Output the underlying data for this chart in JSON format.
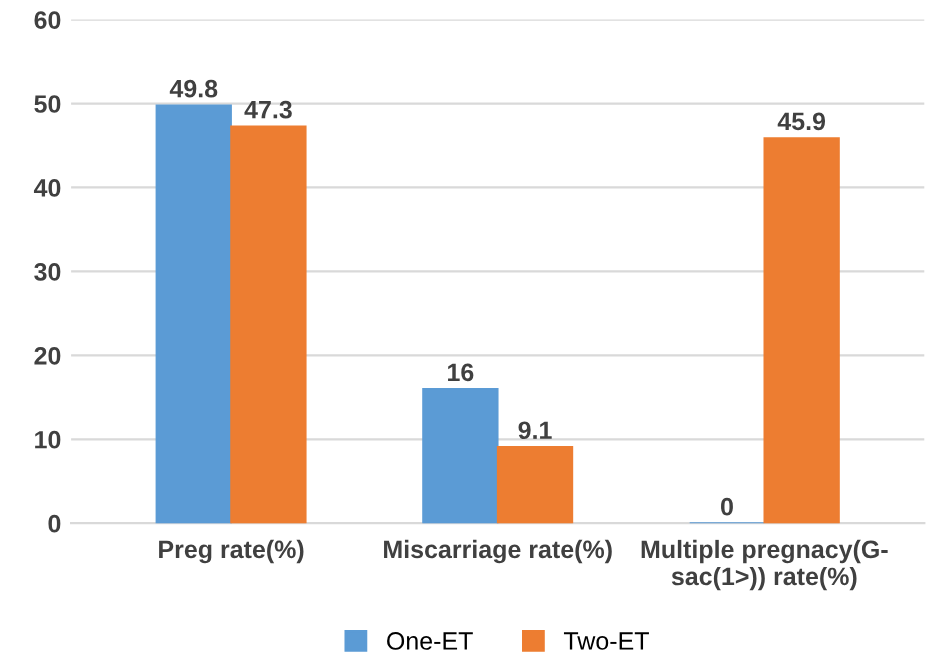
{
  "chart_data": {
    "type": "bar",
    "categories": [
      "Preg rate(%)",
      "Miscarriage rate(%)",
      "Multiple pregnacy(G-\nsac(1>)) rate(%)"
    ],
    "series": [
      {
        "name": "One-ET",
        "color": "#5b9bd5",
        "values": [
          49.8,
          16,
          0
        ]
      },
      {
        "name": "Two-ET",
        "color": "#ed7d31",
        "values": [
          47.3,
          9.1,
          45.9
        ]
      }
    ],
    "ylim": [
      0,
      60
    ],
    "yticks": [
      0,
      10,
      20,
      30,
      40,
      50,
      60
    ],
    "grid": "y",
    "legend": "bottom",
    "data_labels": true
  }
}
